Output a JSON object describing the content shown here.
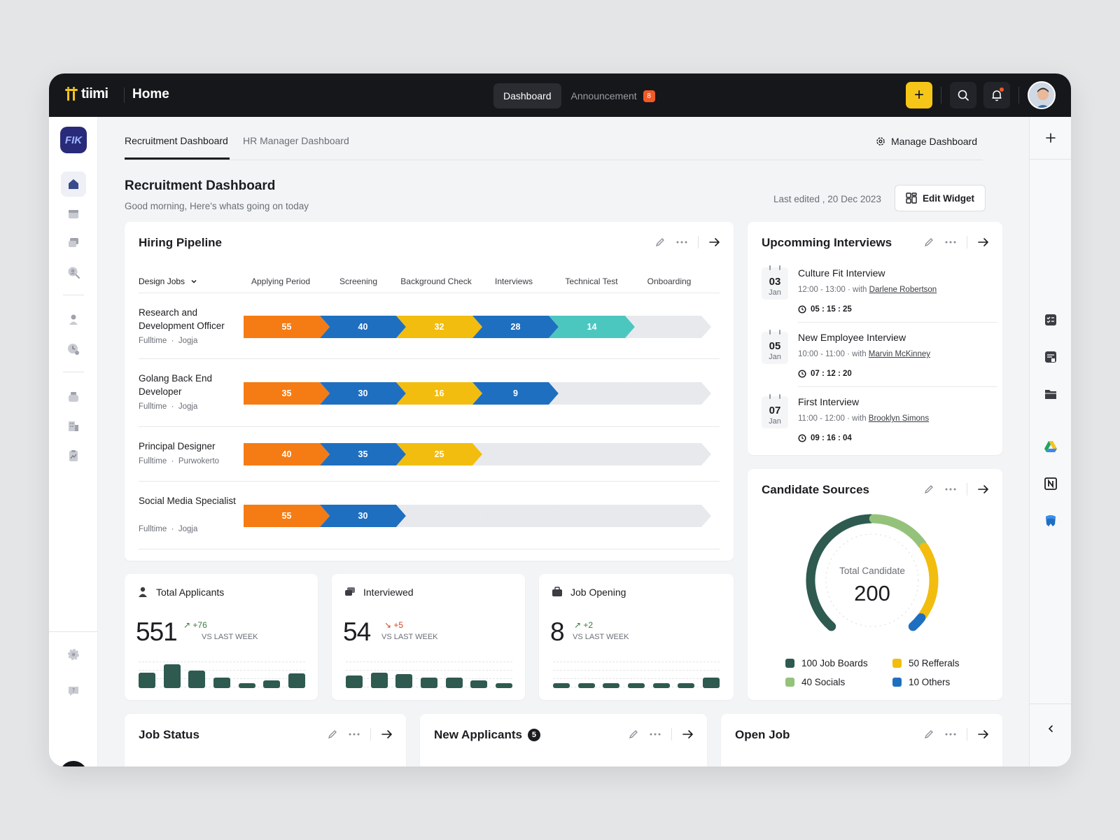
{
  "topbar": {
    "logo_text": "tiimi",
    "page_title": "Home",
    "nav": [
      {
        "label": "Dashboard",
        "active": true
      },
      {
        "label": "Announcement",
        "badge": "8"
      }
    ],
    "add_label": "+"
  },
  "workspace": {
    "logo_text": "FIK"
  },
  "help_label": "?",
  "tabs": [
    {
      "label": "Recruitment Dashboard",
      "active": true
    },
    {
      "label": "HR Manager Dashboard",
      "active": false
    }
  ],
  "manage_dashboard_label": "Manage Dashboard",
  "dashboard": {
    "title": "Recruitment Dashboard",
    "subtitle": "Good morning, Here's whats going on today",
    "last_edited": "Last edited , 20 Dec 2023",
    "edit_widget_label": "Edit Widget"
  },
  "hiring_pipeline": {
    "title": "Hiring Pipeline",
    "filter_label": "Design Jobs",
    "stages": [
      "Applying Period",
      "Screening",
      "Background Check",
      "Interviews",
      "Technical Test",
      "Onboarding"
    ],
    "stage_colors": [
      "#f57c14",
      "#1f6fc0",
      "#f2bd0f",
      "#1f6fc0",
      "#4cc7c0",
      "#e8e9ed"
    ],
    "jobs": [
      {
        "name": "Research and Development Officer",
        "type": "Fulltime",
        "location": "Jogja",
        "values": [
          "55",
          "40",
          "32",
          "28",
          "14"
        ]
      },
      {
        "name": "Golang Back End Developer",
        "type": "Fulltime",
        "location": "Jogja",
        "values": [
          "35",
          "30",
          "16",
          "9"
        ]
      },
      {
        "name": "Principal Designer",
        "type": "Fulltime",
        "location": "Purwokerto",
        "values": [
          "40",
          "35",
          "25"
        ]
      },
      {
        "name": "Social Media Specialist",
        "type": "Fulltime",
        "location": "Jogja",
        "values": [
          "55",
          "30"
        ]
      }
    ]
  },
  "stats": [
    {
      "title": "Total Applicants",
      "value": "551",
      "delta": "+76",
      "direction": "up",
      "vs": "VS LAST WEEK",
      "bars": [
        0.55,
        0.85,
        0.62,
        0.38,
        0.18,
        0.28,
        0.52
      ]
    },
    {
      "title": "Interviewed",
      "value": "54",
      "delta": "+5",
      "direction": "down",
      "vs": "VS LAST WEEK",
      "bars": [
        0.45,
        0.55,
        0.5,
        0.38,
        0.38,
        0.28,
        0.18
      ]
    },
    {
      "title": "Job Opening",
      "value": "8",
      "delta": "+2",
      "direction": "up",
      "vs": "VS LAST WEEK",
      "bars": [
        0.18,
        0.18,
        0.18,
        0.18,
        0.18,
        0.18,
        0.38
      ]
    }
  ],
  "interviews": {
    "title": "Upcomming Interviews",
    "items": [
      {
        "day": "03",
        "month": "Jan",
        "title": "Culture Fit Interview",
        "time": "12:00 - 13:00 · with",
        "with": "Darlene Robertson",
        "countdown": "05 : 15 : 25"
      },
      {
        "day": "05",
        "month": "Jan",
        "title": "New Employee Interview",
        "time": "10:00 - 11:00 · with",
        "with": "Marvin McKinney",
        "countdown": "07 : 12 : 20"
      },
      {
        "day": "07",
        "month": "Jan",
        "title": "First Interview",
        "time": "11:00 - 12:00 · with",
        "with": "Brooklyn Simons",
        "countdown": "09 : 16 : 04"
      }
    ]
  },
  "candidate_sources": {
    "title": "Candidate Sources",
    "center_label": "Total Candidate",
    "total": "200",
    "sources": [
      {
        "label": "100 Job Boards",
        "value": 100,
        "color": "#2e5a50"
      },
      {
        "label": "40 Socials",
        "value": 40,
        "color": "#95c27a"
      },
      {
        "label": "50 Refferals",
        "value": 50,
        "color": "#f2bd0f"
      },
      {
        "label": "10 Others",
        "value": 10,
        "color": "#1f6fc0"
      }
    ]
  },
  "bottom_cards": [
    {
      "title": "Job Status"
    },
    {
      "title": "New Applicants",
      "badge": "5"
    },
    {
      "title": "Open Job"
    }
  ],
  "colors": {
    "accent": "#f5c518",
    "dark": "#16171b",
    "teal": "#2e5a50"
  }
}
